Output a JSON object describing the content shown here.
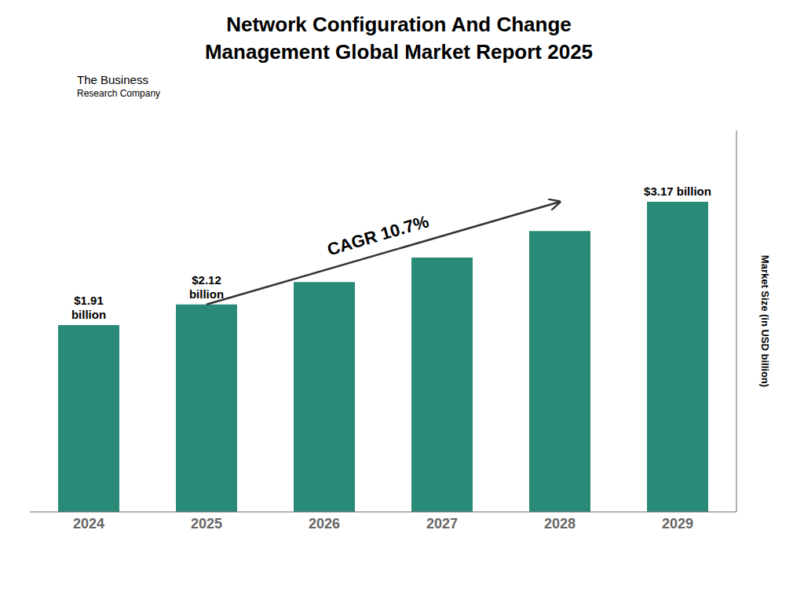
{
  "chart_data": {
    "type": "bar",
    "title": "Network Configuration And Change\nManagement Global Market Report 2025",
    "categories": [
      "2024",
      "2025",
      "2026",
      "2027",
      "2028",
      "2029"
    ],
    "values": [
      1.91,
      2.12,
      2.35,
      2.6,
      2.87,
      3.17
    ],
    "value_labels": [
      "$1.91\nbillion",
      "$2.12\nbillion",
      null,
      null,
      null,
      "$3.17 billion"
    ],
    "color": "#2a8a78",
    "ylabel": "Market Size (in USD billion)",
    "ylim": [
      0,
      3.9
    ],
    "grid": false,
    "data_labels": true,
    "tick_labels": "x",
    "annotations": [
      "CAGR 10.7%",
      "The Business",
      "Research Company"
    ]
  }
}
